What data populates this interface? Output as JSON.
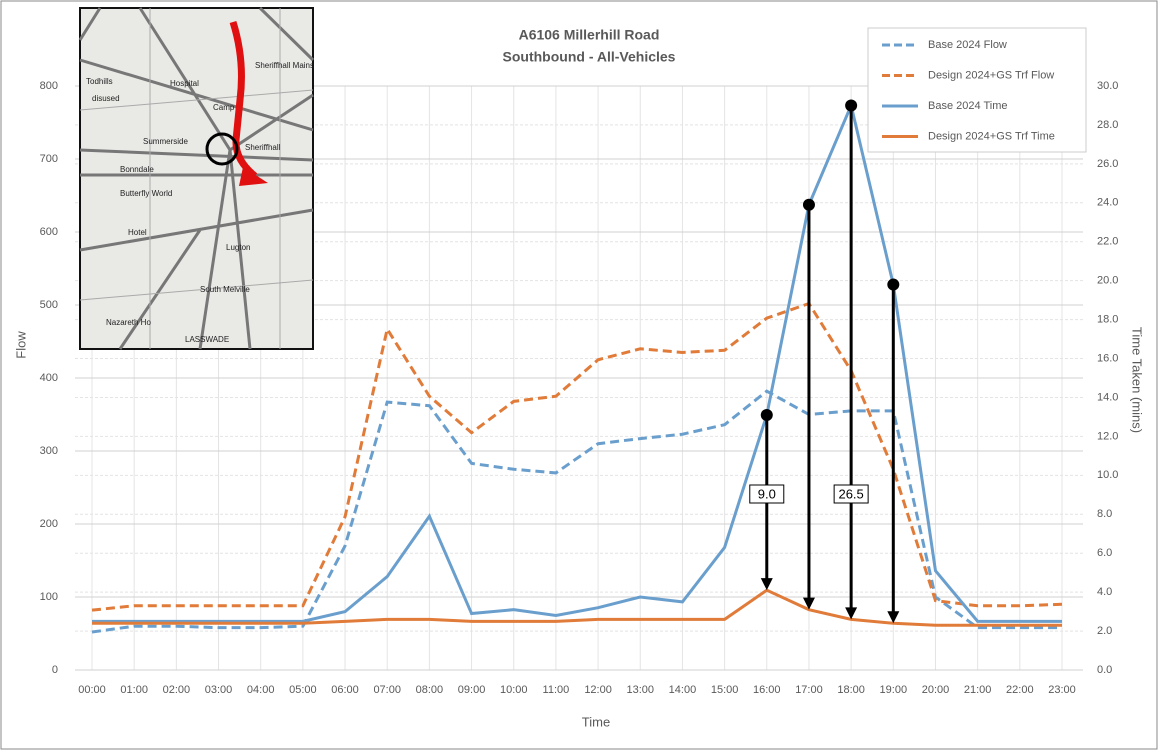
{
  "chart_data": {
    "type": "line",
    "title": "A6106 Millerhill Road",
    "subtitle": "Southbound - All-Vehicles",
    "x_label": "Time",
    "y_label": "Flow",
    "y2_label": "Time Taken (mins)",
    "categories": [
      "00:00",
      "01:00",
      "02:00",
      "03:00",
      "04:00",
      "05:00",
      "06:00",
      "07:00",
      "08:00",
      "09:00",
      "10:00",
      "11:00",
      "12:00",
      "13:00",
      "14:00",
      "15:00",
      "16:00",
      "17:00",
      "18:00",
      "19:00",
      "20:00",
      "21:00",
      "22:00",
      "23:00"
    ],
    "ylim": [
      0,
      800
    ],
    "yticks": [
      0,
      100,
      200,
      300,
      400,
      500,
      600,
      700,
      800
    ],
    "y2lim": [
      0,
      30
    ],
    "y2ticks": [
      {
        "value": 0,
        "label": "0.0"
      },
      {
        "value": 2,
        "label": "2.0"
      },
      {
        "value": 4,
        "label": "4.0"
      },
      {
        "value": 6,
        "label": "6.0"
      },
      {
        "value": 8,
        "label": "8.0"
      },
      {
        "value": 10,
        "label": "10.0"
      },
      {
        "value": 12,
        "label": "12.0"
      },
      {
        "value": 14,
        "label": "14.0"
      },
      {
        "value": 16,
        "label": "16.0"
      },
      {
        "value": 18,
        "label": "18.0"
      },
      {
        "value": 20,
        "label": "20.0"
      },
      {
        "value": 22,
        "label": "22.0"
      },
      {
        "value": 24,
        "label": "24.0"
      },
      {
        "value": 26,
        "label": "26.0"
      },
      {
        "value": 28,
        "label": "28.0"
      },
      {
        "value": 30,
        "label": "30.0"
      }
    ],
    "grid": true,
    "legend": "top-right",
    "series": [
      {
        "name": "Base 2024 Flow",
        "color": "#6a9fcd",
        "dashed": true,
        "values": [
          52,
          60,
          60,
          58,
          58,
          60,
          170,
          367,
          362,
          283,
          275,
          270,
          310,
          317,
          323,
          336,
          382,
          350,
          355,
          355,
          100,
          58,
          58,
          58
        ]
      },
      {
        "name": "Design 2024+GS Trf Flow",
        "color": "#e07b39",
        "dashed": true,
        "values": [
          82,
          88,
          88,
          88,
          88,
          88,
          210,
          467,
          375,
          325,
          368,
          375,
          425,
          440,
          435,
          438,
          482,
          502,
          410,
          275,
          95,
          88,
          88,
          90
        ]
      },
      {
        "name": "Base 2024 Time",
        "color": "#6a9fcd",
        "dashed": false,
        "axis": "y2",
        "values": [
          2.5,
          2.5,
          2.5,
          2.5,
          2.5,
          2.5,
          3.0,
          4.8,
          7.9,
          2.9,
          3.1,
          2.8,
          3.2,
          3.75,
          3.5,
          6.3,
          13.1,
          23.9,
          29.0,
          19.8,
          5.1,
          2.5,
          2.5,
          2.5
        ]
      },
      {
        "name": "Design 2024+GS Trf Time",
        "color": "#e07b39",
        "dashed": false,
        "axis": "y2",
        "values": [
          2.4,
          2.4,
          2.4,
          2.4,
          2.4,
          2.4,
          2.5,
          2.6,
          2.6,
          2.5,
          2.5,
          2.5,
          2.6,
          2.6,
          2.6,
          2.6,
          4.1,
          3.1,
          2.6,
          2.4,
          2.3,
          2.3,
          2.3,
          2.3
        ]
      }
    ],
    "arrows": [
      "16:00",
      "17:00",
      "18:00",
      "19:00"
    ],
    "annotations": [
      {
        "text": "9.0",
        "x": "16:00"
      },
      {
        "text": "26.5",
        "x": "18:00"
      }
    ]
  },
  "inset_map": {
    "labels": [
      "Todhills",
      "Hospital",
      "Sheriffhall Mains",
      "disused",
      "Camp",
      "Summerside",
      "Sheriffhall",
      "Bonndale",
      "Butterfly World",
      "Hotel",
      "Lugton",
      "South Melville",
      "Nazareth Ho",
      "LASSWADE"
    ]
  }
}
